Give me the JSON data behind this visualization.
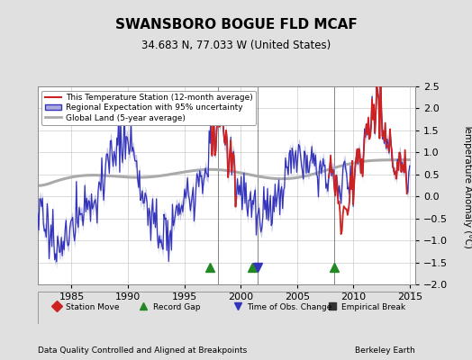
{
  "title": "SWANSBORO BOGUE FLD MCAF",
  "subtitle": "34.683 N, 77.033 W (United States)",
  "ylabel": "Temperature Anomaly (°C)",
  "footer_left": "Data Quality Controlled and Aligned at Breakpoints",
  "footer_right": "Berkeley Earth",
  "xlim": [
    1982.0,
    2015.5
  ],
  "ylim": [
    -2.0,
    2.5
  ],
  "yticks": [
    -2,
    -1.5,
    -1,
    -0.5,
    0,
    0.5,
    1,
    1.5,
    2,
    2.5
  ],
  "xticks": [
    1985,
    1990,
    1995,
    2000,
    2005,
    2010,
    2015
  ],
  "background_color": "#e0e0e0",
  "plot_bg_color": "#ffffff",
  "regional_color": "#3333bb",
  "regional_fill_color": "#aaaadd",
  "station_color": "#cc2222",
  "global_color": "#aaaaaa",
  "vline_color": "#666666",
  "vlines_x": [
    1998.0,
    2001.5,
    2008.3
  ],
  "record_gap_markers": [
    {
      "x": 1997.3,
      "marker": "^",
      "color": "#228822"
    },
    {
      "x": 2001.0,
      "marker": "^",
      "color": "#228822"
    },
    {
      "x": 2008.3,
      "marker": "^",
      "color": "#228822"
    }
  ],
  "time_obs_markers": [
    {
      "x": 2001.5,
      "marker": "v",
      "color": "#3333bb"
    }
  ],
  "legend_items": [
    {
      "label": "This Temperature Station (12-month average)",
      "color": "#cc2222",
      "lw": 1.5
    },
    {
      "label": "Regional Expectation with 95% uncertainty",
      "color": "#3333bb",
      "fill": "#aaaadd"
    },
    {
      "label": "Global Land (5-year average)",
      "color": "#aaaaaa",
      "lw": 2.0
    }
  ],
  "bottom_legend": [
    {
      "label": "Station Move",
      "marker": "D",
      "color": "#cc2222"
    },
    {
      "label": "Record Gap",
      "marker": "^",
      "color": "#228822"
    },
    {
      "label": "Time of Obs. Change",
      "marker": "v",
      "color": "#3333bb"
    },
    {
      "label": "Empirical Break",
      "marker": "s",
      "color": "#333333"
    }
  ]
}
